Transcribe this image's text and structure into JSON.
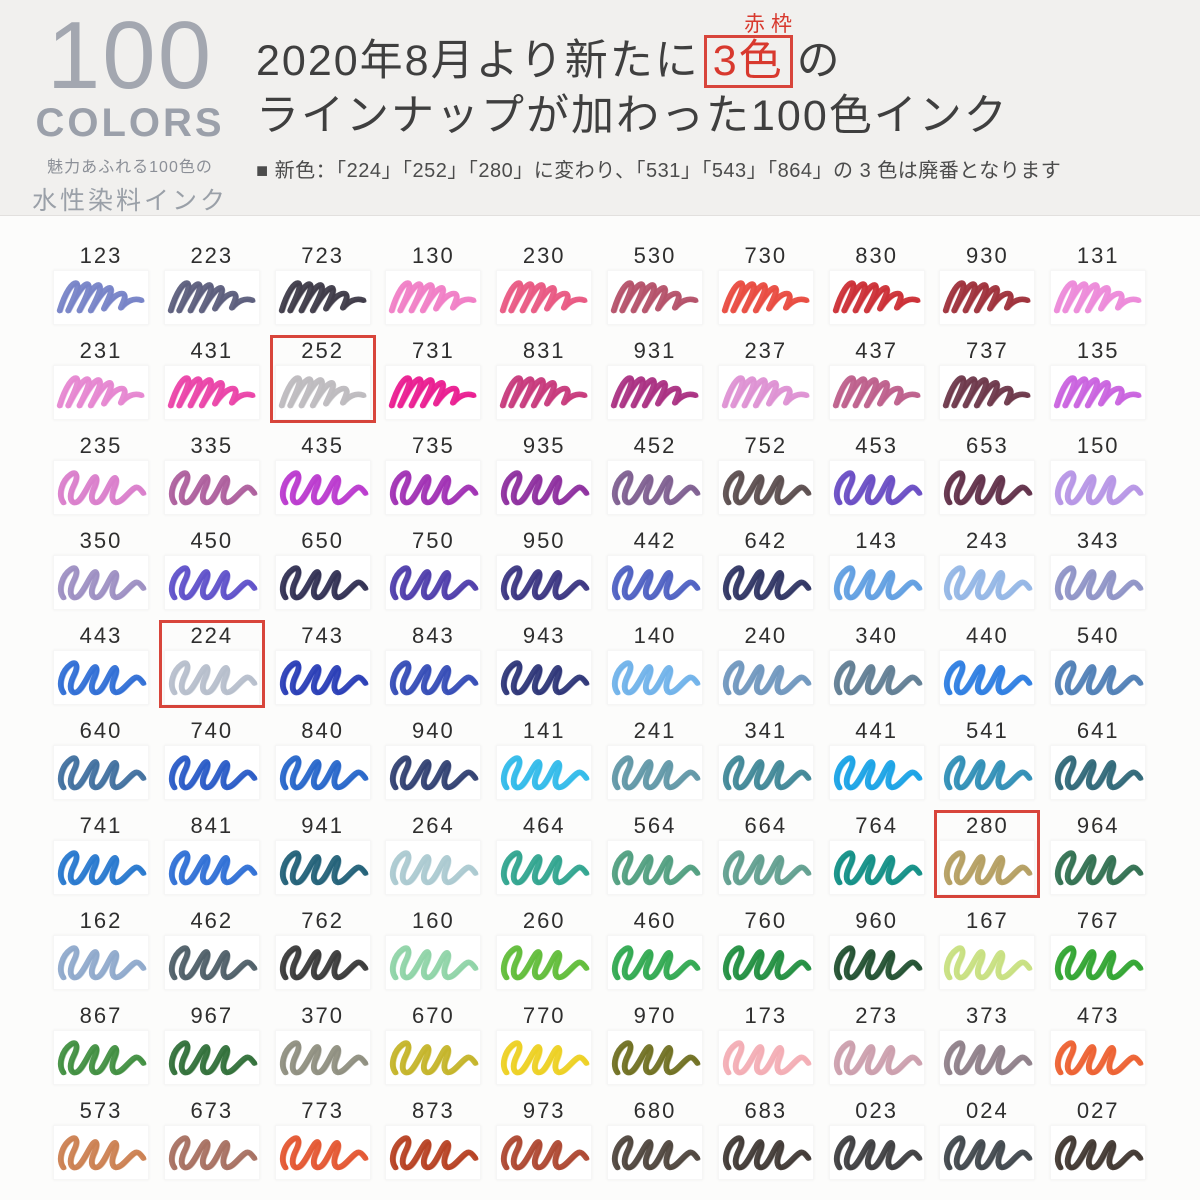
{
  "logo": {
    "big": "100",
    "word": "COLORS",
    "tag1": "魅力あふれる100色の",
    "tag2": "水性染料インク"
  },
  "header": {
    "annotation": "赤枠",
    "title_pre": "2020年8月より新たに",
    "title_boxed": "3色",
    "title_post": "の",
    "title_line2": "ラインナップが加わった100色インク",
    "subtitle": "■ 新色：「224」「252」「280」に変わり、「531」「543」「864」の 3 色は廃番となります"
  },
  "colors": {
    "accent_red": "#d8392e"
  },
  "grid": {
    "cells": [
      {
        "id": "123",
        "color": "#7380c6",
        "boxed": false
      },
      {
        "id": "223",
        "color": "#585a7a",
        "boxed": false
      },
      {
        "id": "723",
        "color": "#3a3644",
        "boxed": false
      },
      {
        "id": "130",
        "color": "#f07cc4",
        "boxed": false
      },
      {
        "id": "230",
        "color": "#e85580",
        "boxed": false
      },
      {
        "id": "530",
        "color": "#b34d66",
        "boxed": false
      },
      {
        "id": "730",
        "color": "#e8473c",
        "boxed": false
      },
      {
        "id": "830",
        "color": "#cb2a31",
        "boxed": false
      },
      {
        "id": "930",
        "color": "#9c2b36",
        "boxed": false
      },
      {
        "id": "131",
        "color": "#ec87d8",
        "boxed": false
      },
      {
        "id": "231",
        "color": "#e583cf",
        "boxed": false
      },
      {
        "id": "431",
        "color": "#ea3fa6",
        "boxed": false
      },
      {
        "id": "252",
        "color": "#bcb9bd",
        "boxed": true
      },
      {
        "id": "731",
        "color": "#e9188e",
        "boxed": false
      },
      {
        "id": "831",
        "color": "#c63579",
        "boxed": false
      },
      {
        "id": "931",
        "color": "#a82c80",
        "boxed": false
      },
      {
        "id": "237",
        "color": "#dd8fd2",
        "boxed": false
      },
      {
        "id": "437",
        "color": "#bc5b89",
        "boxed": false
      },
      {
        "id": "737",
        "color": "#693346",
        "boxed": false
      },
      {
        "id": "135",
        "color": "#c95fde",
        "boxed": false
      },
      {
        "id": "235",
        "color": "#d97bca",
        "boxed": false
      },
      {
        "id": "335",
        "color": "#ab5b9b",
        "boxed": false
      },
      {
        "id": "435",
        "color": "#b935cd",
        "boxed": false
      },
      {
        "id": "735",
        "color": "#9e2cb2",
        "boxed": false
      },
      {
        "id": "935",
        "color": "#8b2a9c",
        "boxed": false
      },
      {
        "id": "452",
        "color": "#7c5b8e",
        "boxed": false
      },
      {
        "id": "752",
        "color": "#584a4b",
        "boxed": false
      },
      {
        "id": "453",
        "color": "#6649c2",
        "boxed": false
      },
      {
        "id": "653",
        "color": "#5d2b45",
        "boxed": false
      },
      {
        "id": "150",
        "color": "#b593e5",
        "boxed": false
      },
      {
        "id": "350",
        "color": "#9b8dc1",
        "boxed": false
      },
      {
        "id": "450",
        "color": "#5b4dc9",
        "boxed": false
      },
      {
        "id": "650",
        "color": "#2d2b4f",
        "boxed": false
      },
      {
        "id": "750",
        "color": "#4b39a9",
        "boxed": false
      },
      {
        "id": "950",
        "color": "#37327f",
        "boxed": false
      },
      {
        "id": "442",
        "color": "#4b5dc1",
        "boxed": false
      },
      {
        "id": "642",
        "color": "#2b3161",
        "boxed": false
      },
      {
        "id": "143",
        "color": "#5d9de1",
        "boxed": false
      },
      {
        "id": "243",
        "color": "#91b5e5",
        "boxed": false
      },
      {
        "id": "343",
        "color": "#8d91c5",
        "boxed": false
      },
      {
        "id": "443",
        "color": "#2b6bd5",
        "boxed": false
      },
      {
        "id": "224",
        "color": "#b5bdcb",
        "boxed": true
      },
      {
        "id": "743",
        "color": "#2539b5",
        "boxed": false
      },
      {
        "id": "843",
        "color": "#3149b5",
        "boxed": false
      },
      {
        "id": "943",
        "color": "#293275",
        "boxed": false
      },
      {
        "id": "140",
        "color": "#6db1e9",
        "boxed": false
      },
      {
        "id": "240",
        "color": "#6d95bd",
        "boxed": false
      },
      {
        "id": "340",
        "color": "#5d7b91",
        "boxed": false
      },
      {
        "id": "440",
        "color": "#297be1",
        "boxed": false
      },
      {
        "id": "540",
        "color": "#4d7db5",
        "boxed": false
      },
      {
        "id": "640",
        "color": "#3d6d9d",
        "boxed": false
      },
      {
        "id": "740",
        "color": "#2557c5",
        "boxed": false
      },
      {
        "id": "840",
        "color": "#2263c9",
        "boxed": false
      },
      {
        "id": "940",
        "color": "#2d3d6f",
        "boxed": false
      },
      {
        "id": "141",
        "color": "#2db9e9",
        "boxed": false
      },
      {
        "id": "241",
        "color": "#5d95a5",
        "boxed": false
      },
      {
        "id": "341",
        "color": "#3d8595",
        "boxed": false
      },
      {
        "id": "441",
        "color": "#15a1e5",
        "boxed": false
      },
      {
        "id": "541",
        "color": "#2b8db5",
        "boxed": false
      },
      {
        "id": "641",
        "color": "#2b6575",
        "boxed": false
      },
      {
        "id": "741",
        "color": "#2375cd",
        "boxed": false
      },
      {
        "id": "841",
        "color": "#2b6dd5",
        "boxed": false
      },
      {
        "id": "941",
        "color": "#1d5d75",
        "boxed": false
      },
      {
        "id": "264",
        "color": "#a9c9cf",
        "boxed": false
      },
      {
        "id": "464",
        "color": "#2ca38d",
        "boxed": false
      },
      {
        "id": "564",
        "color": "#4d9d7d",
        "boxed": false
      },
      {
        "id": "664",
        "color": "#5d9d8d",
        "boxed": false
      },
      {
        "id": "764",
        "color": "#0c8d83",
        "boxed": false
      },
      {
        "id": "280",
        "color": "#b39c5d",
        "boxed": true
      },
      {
        "id": "964",
        "color": "#2d6d4d",
        "boxed": false
      },
      {
        "id": "162",
        "color": "#8da7cb",
        "boxed": false
      },
      {
        "id": "462",
        "color": "#4b5b65",
        "boxed": false
      },
      {
        "id": "762",
        "color": "#353535",
        "boxed": false
      },
      {
        "id": "160",
        "color": "#8dd3a5",
        "boxed": false
      },
      {
        "id": "260",
        "color": "#5dbb35",
        "boxed": false
      },
      {
        "id": "460",
        "color": "#2da74d",
        "boxed": false
      },
      {
        "id": "760",
        "color": "#1d8d3d",
        "boxed": false
      },
      {
        "id": "960",
        "color": "#1d4d2d",
        "boxed": false
      },
      {
        "id": "167",
        "color": "#c7df7d",
        "boxed": false
      },
      {
        "id": "767",
        "color": "#2da32d",
        "boxed": false
      },
      {
        "id": "867",
        "color": "#3d8d3d",
        "boxed": false
      },
      {
        "id": "967",
        "color": "#2d6d35",
        "boxed": false
      },
      {
        "id": "370",
        "color": "#8d8d7d",
        "boxed": false
      },
      {
        "id": "670",
        "color": "#c3b325",
        "boxed": false
      },
      {
        "id": "770",
        "color": "#edcf1d",
        "boxed": false
      },
      {
        "id": "970",
        "color": "#6d6d1d",
        "boxed": false
      },
      {
        "id": "173",
        "color": "#f3abb3",
        "boxed": false
      },
      {
        "id": "273",
        "color": "#cb9dab",
        "boxed": false
      },
      {
        "id": "373",
        "color": "#8d7d87",
        "boxed": false
      },
      {
        "id": "473",
        "color": "#ed5d2d",
        "boxed": false
      },
      {
        "id": "573",
        "color": "#cb7d4d",
        "boxed": false
      },
      {
        "id": "673",
        "color": "#a56d5d",
        "boxed": false
      },
      {
        "id": "773",
        "color": "#e3532d",
        "boxed": false
      },
      {
        "id": "873",
        "color": "#b53d1d",
        "boxed": false
      },
      {
        "id": "973",
        "color": "#ab432d",
        "boxed": false
      },
      {
        "id": "680",
        "color": "#4b4139",
        "boxed": false
      },
      {
        "id": "683",
        "color": "#3d3531",
        "boxed": false
      },
      {
        "id": "023",
        "color": "#3b3b3d",
        "boxed": false
      },
      {
        "id": "024",
        "color": "#3d4349",
        "boxed": false
      },
      {
        "id": "027",
        "color": "#3d332d",
        "boxed": false
      }
    ]
  }
}
